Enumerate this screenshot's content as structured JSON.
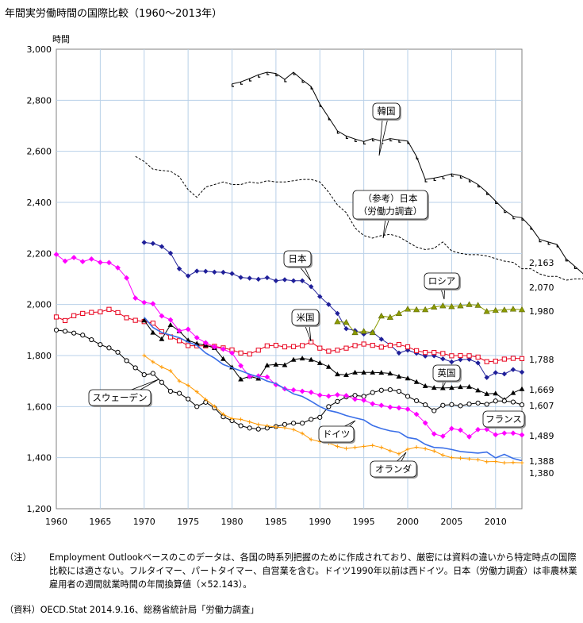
{
  "title": "年間実労働時間の国際比較（1960〜2013年）",
  "note_label": "（注）",
  "note_text": "Employment Outlookベースのこのデータは、各国の時系列把握のために作成されており、厳密には資料の違いから特定時点の国際比較には適さない。フルタイマー、パートタイマー、自営業を含む。ドイツ1990年以前は西ドイツ。日本（労働力調査）は非農林業雇用者の週間就業時間の年間換算値（×52.143）。",
  "source_text": "（資料）OECD.Stat 2014.9.16、総務省統計局「労働力調査」",
  "colors": {
    "korea": "#000000",
    "japan_lfs": "#000000",
    "japan": "#1f1f99",
    "russia": "#8c9b00",
    "usa": "#e8001c",
    "uk": "#000000",
    "sweden": "#000000",
    "france": "#ff00ff",
    "germany": "#3a6fe8",
    "netherlands": "#ff9900",
    "grid": "#b8d0e8"
  },
  "chart_data": {
    "type": "line",
    "ylabel": "時間",
    "xlim": [
      1960,
      2013
    ],
    "ylim": [
      1200,
      3000
    ],
    "x_ticks": [
      1960,
      1965,
      1970,
      1975,
      1980,
      1985,
      1990,
      1995,
      2000,
      2005,
      2010
    ],
    "y_ticks": [
      1200,
      1400,
      1600,
      1800,
      2000,
      2200,
      2400,
      2600,
      2800,
      3000
    ],
    "y_tick_labels": [
      "1,200",
      "1,400",
      "1,600",
      "1,800",
      "2,000",
      "2,200",
      "2,400",
      "2,600",
      "2,800",
      "3,000"
    ],
    "grid": true,
    "series": [
      {
        "key": "korea",
        "name": "韓国",
        "start": 1980,
        "end_label": "2,163",
        "values": [
          2864,
          2872,
          2885,
          2900,
          2910,
          2905,
          2882,
          2910,
          2880,
          2854,
          2785,
          2733,
          2680,
          2660,
          2648,
          2638,
          2650,
          2640,
          2650,
          2645,
          2640,
          2580,
          2490,
          2495,
          2502,
          2512,
          2505,
          2490,
          2470,
          2440,
          2405,
          2370,
          2345,
          2340,
          2304,
          2255,
          2245,
          2235,
          2180,
          2150,
          2120,
          2100,
          2090,
          2163,
          2163
        ]
      },
      {
        "key": "japan_lfs",
        "name": "（参考）日本（労働力調査）",
        "start": 1969,
        "end_label": "2,070",
        "values": [
          2580,
          2560,
          2530,
          2525,
          2522,
          2500,
          2450,
          2420,
          2460,
          2470,
          2480,
          2470,
          2470,
          2480,
          2475,
          2485,
          2480,
          2480,
          2485,
          2490,
          2490,
          2480,
          2440,
          2390,
          2360,
          2300,
          2270,
          2260,
          2270,
          2275,
          2265,
          2245,
          2225,
          2215,
          2220,
          2245,
          2210,
          2200,
          2195,
          2195,
          2190,
          2180,
          2170,
          2165,
          2140,
          2140,
          2120,
          2110,
          2110,
          2095,
          2100,
          2100,
          2075,
          2070,
          2070
        ]
      },
      {
        "key": "japan",
        "name": "日本",
        "start": 1970,
        "end_label": "",
        "values": [
          2243,
          2239,
          2227,
          2201,
          2140,
          2112,
          2131,
          2130,
          2127,
          2126,
          2121,
          2106,
          2103,
          2099,
          2105,
          2093,
          2097,
          2093,
          2093,
          2070,
          2031,
          2000,
          1965,
          1905,
          1898,
          1884,
          1892,
          1864,
          1842,
          1810,
          1821,
          1809,
          1798,
          1799,
          1787,
          1775,
          1784,
          1785,
          1771,
          1714,
          1733,
          1728,
          1745,
          1735
        ]
      },
      {
        "key": "russia",
        "name": "ロシア",
        "start": 1992,
        "end_label": "1,980",
        "values": [
          1933,
          1930,
          1890,
          1895,
          1890,
          1955,
          1950,
          1965,
          1982,
          1980,
          1980,
          1990,
          1995,
          1992,
          1995,
          2000,
          1997,
          1973,
          1977,
          1979,
          1982,
          1980
        ]
      },
      {
        "key": "usa",
        "name": "米国",
        "start": 1960,
        "end_label": "1,788",
        "values": [
          1951,
          1937,
          1956,
          1965,
          1969,
          1971,
          1981,
          1968,
          1948,
          1938,
          1933,
          1927,
          1893,
          1873,
          1858,
          1839,
          1838,
          1838,
          1836,
          1830,
          1822,
          1810,
          1806,
          1821,
          1838,
          1840,
          1834,
          1835,
          1839,
          1853,
          1829,
          1817,
          1821,
          1829,
          1839,
          1845,
          1840,
          1833,
          1840,
          1843,
          1834,
          1819,
          1812,
          1812,
          1808,
          1799,
          1800,
          1799,
          1794,
          1776,
          1778,
          1786,
          1789,
          1788
        ]
      },
      {
        "key": "uk",
        "name": "英国",
        "start": 1970,
        "end_label": "1,669",
        "values": [
          1938,
          1890,
          1865,
          1920,
          1896,
          1860,
          1847,
          1840,
          1830,
          1787,
          1754,
          1707,
          1719,
          1710,
          1762,
          1765,
          1763,
          1784,
          1789,
          1784,
          1771,
          1756,
          1727,
          1724,
          1734,
          1734,
          1734,
          1733,
          1730,
          1718,
          1711,
          1697,
          1681,
          1674,
          1673,
          1674,
          1677,
          1678,
          1664,
          1650,
          1652,
          1627,
          1654,
          1669
        ]
      },
      {
        "key": "sweden",
        "name": "スウェーデン",
        "start": 1960,
        "end_label": "1,607",
        "values": [
          1900,
          1895,
          1888,
          1880,
          1862,
          1843,
          1830,
          1813,
          1780,
          1752,
          1725,
          1730,
          1695,
          1660,
          1652,
          1630,
          1600,
          1617,
          1595,
          1560,
          1545,
          1525,
          1516,
          1512,
          1516,
          1522,
          1530,
          1535,
          1535,
          1550,
          1558,
          1600,
          1620,
          1638,
          1644,
          1640,
          1655,
          1664,
          1666,
          1660,
          1640,
          1623,
          1607,
          1584,
          1605,
          1608,
          1603,
          1610,
          1614,
          1609,
          1622,
          1622,
          1618,
          1607
        ]
      },
      {
        "key": "france",
        "name": "フランス",
        "start": 1960,
        "end_label": "1,489",
        "values": [
          2196,
          2170,
          2184,
          2168,
          2178,
          2165,
          2164,
          2144,
          2104,
          2025,
          2008,
          2003,
          1955,
          1940,
          1897,
          1903,
          1870,
          1850,
          1834,
          1825,
          1810,
          1760,
          1718,
          1720,
          1716,
          1686,
          1670,
          1665,
          1660,
          1656,
          1645,
          1641,
          1646,
          1643,
          1629,
          1625,
          1611,
          1605,
          1598,
          1595,
          1590,
          1570,
          1536,
          1493,
          1484,
          1514,
          1508,
          1482,
          1510,
          1511,
          1490,
          1496,
          1496,
          1489
        ]
      },
      {
        "key": "germany",
        "name": "ドイツ",
        "start": 1970,
        "end_label": "1,388",
        "values": [
          1950,
          1910,
          1890,
          1880,
          1870,
          1853,
          1840,
          1810,
          1790,
          1765,
          1752,
          1740,
          1727,
          1716,
          1700,
          1690,
          1670,
          1650,
          1640,
          1621,
          1600,
          1585,
          1577,
          1565,
          1556,
          1548,
          1526,
          1514,
          1505,
          1500,
          1479,
          1473,
          1452,
          1440,
          1438,
          1432,
          1424,
          1421,
          1418,
          1422,
          1399,
          1413,
          1397,
          1388
        ]
      },
      {
        "key": "netherlands",
        "name": "オランダ",
        "start": 1970,
        "end_label": "1,380",
        "values": [
          1800,
          1775,
          1755,
          1740,
          1700,
          1683,
          1658,
          1628,
          1601,
          1570,
          1553,
          1550,
          1540,
          1530,
          1525,
          1520,
          1517,
          1510,
          1495,
          1471,
          1463,
          1457,
          1444,
          1436,
          1440,
          1444,
          1448,
          1440,
          1427,
          1415,
          1433,
          1441,
          1435,
          1426,
          1410,
          1400,
          1398,
          1395,
          1392,
          1384,
          1385,
          1380,
          1381,
          1380
        ]
      }
    ],
    "callouts": [
      {
        "key": "korea",
        "label": "韓国"
      },
      {
        "key": "japan_lfs",
        "label": "（参考）日本\n（労働力調査）"
      },
      {
        "key": "japan",
        "label": "日本"
      },
      {
        "key": "russia",
        "label": "ロシア"
      },
      {
        "key": "usa",
        "label": "米国"
      },
      {
        "key": "uk",
        "label": "英国"
      },
      {
        "key": "sweden",
        "label": "スウェーデン"
      },
      {
        "key": "france",
        "label": "フランス"
      },
      {
        "key": "germany",
        "label": "ドイツ"
      },
      {
        "key": "netherlands",
        "label": "オランダ"
      }
    ]
  }
}
